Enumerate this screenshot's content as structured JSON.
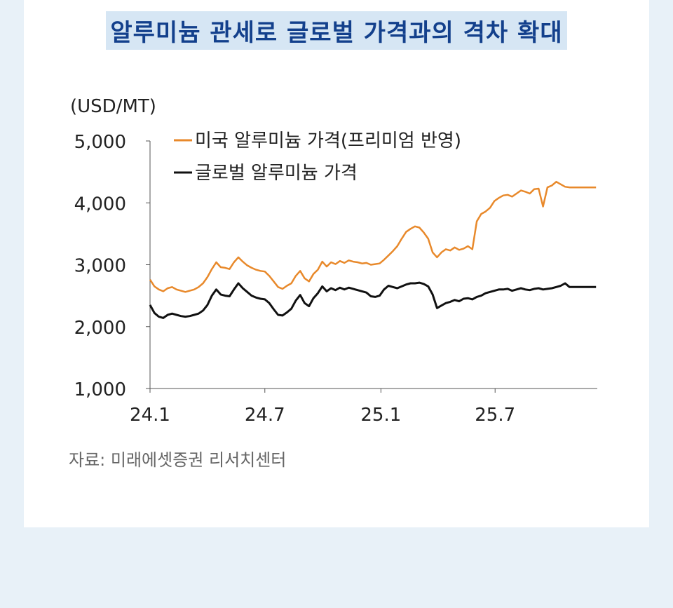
{
  "title": "알루미늄 관세로 글로벌 가격과의 격차 확대",
  "source": "자료: 미래에셋증권 리서치센터",
  "chart_data": {
    "type": "line",
    "title": "알루미늄 관세로 글로벌 가격과의 격차 확대",
    "unit_label": "(USD/MT)",
    "ylim": [
      1000,
      5000
    ],
    "yticks": [
      1000,
      2000,
      3000,
      4000,
      5000
    ],
    "ytick_labels": [
      "1,000",
      "2,000",
      "3,000",
      "4,000",
      "5,000"
    ],
    "xlim": [
      "2024-01-01",
      "2025-12-10"
    ],
    "xticks": [
      "2024-01-01",
      "2024-07-01",
      "2025-01-01",
      "2025-07-01"
    ],
    "xtick_labels": [
      "24.1",
      "24.7",
      "25.1",
      "25.7"
    ],
    "grid": false,
    "legend_position": "top-left",
    "series": [
      {
        "name": "미국 알루미늄 가격(프리미엄 반영)",
        "color": "#e8892b",
        "x": [
          "2024-01-01",
          "2024-01-08",
          "2024-01-15",
          "2024-01-22",
          "2024-01-29",
          "2024-02-05",
          "2024-02-12",
          "2024-02-19",
          "2024-02-26",
          "2024-03-04",
          "2024-03-11",
          "2024-03-18",
          "2024-03-25",
          "2024-04-01",
          "2024-04-08",
          "2024-04-15",
          "2024-04-22",
          "2024-04-29",
          "2024-05-06",
          "2024-05-13",
          "2024-05-20",
          "2024-05-27",
          "2024-06-03",
          "2024-06-10",
          "2024-06-17",
          "2024-06-24",
          "2024-07-01",
          "2024-07-08",
          "2024-07-15",
          "2024-07-22",
          "2024-07-29",
          "2024-08-05",
          "2024-08-12",
          "2024-08-19",
          "2024-08-26",
          "2024-09-02",
          "2024-09-09",
          "2024-09-16",
          "2024-09-23",
          "2024-09-30",
          "2024-10-07",
          "2024-10-14",
          "2024-10-21",
          "2024-10-28",
          "2024-11-04",
          "2024-11-11",
          "2024-11-18",
          "2024-11-25",
          "2024-12-02",
          "2024-12-09",
          "2024-12-16",
          "2024-12-23",
          "2024-12-30",
          "2025-01-06",
          "2025-01-13",
          "2025-01-20",
          "2025-01-27",
          "2025-02-03",
          "2025-02-10",
          "2025-02-17",
          "2025-02-24",
          "2025-03-03",
          "2025-03-10",
          "2025-03-17",
          "2025-03-24",
          "2025-03-31",
          "2025-04-07",
          "2025-04-14",
          "2025-04-21",
          "2025-04-28",
          "2025-05-05",
          "2025-05-12",
          "2025-05-19",
          "2025-05-26",
          "2025-06-02",
          "2025-06-09",
          "2025-06-16",
          "2025-06-23",
          "2025-06-30",
          "2025-07-07",
          "2025-07-14",
          "2025-07-21",
          "2025-07-28",
          "2025-08-04",
          "2025-08-11",
          "2025-08-18",
          "2025-08-25",
          "2025-09-01",
          "2025-09-08",
          "2025-09-15",
          "2025-09-22",
          "2025-09-29",
          "2025-10-06",
          "2025-10-13",
          "2025-10-20",
          "2025-10-27",
          "2025-11-03",
          "2025-11-10",
          "2025-11-17",
          "2025-11-24",
          "2025-12-01",
          "2025-12-08"
        ],
        "values": [
          2760,
          2650,
          2600,
          2570,
          2620,
          2640,
          2600,
          2580,
          2560,
          2580,
          2600,
          2640,
          2700,
          2800,
          2930,
          3040,
          2960,
          2950,
          2930,
          3040,
          3120,
          3050,
          2990,
          2950,
          2920,
          2900,
          2890,
          2820,
          2730,
          2640,
          2610,
          2660,
          2700,
          2820,
          2900,
          2780,
          2730,
          2850,
          2920,
          3050,
          2970,
          3040,
          3010,
          3060,
          3030,
          3070,
          3050,
          3040,
          3020,
          3030,
          3000,
          3010,
          3020,
          3080,
          3150,
          3220,
          3300,
          3420,
          3530,
          3580,
          3620,
          3600,
          3520,
          3420,
          3200,
          3120,
          3200,
          3250,
          3230,
          3280,
          3240,
          3260,
          3300,
          3250,
          3700,
          3820,
          3860,
          3920,
          4030,
          4080,
          4120,
          4130,
          4100,
          4150,
          4200,
          4180,
          4150,
          4220,
          4230,
          3940,
          4250,
          4280,
          4340,
          4300,
          4260,
          4250,
          4250,
          4250,
          4250,
          4250,
          4250,
          4250
        ]
      },
      {
        "name": "글로벌 알루미늄 가격",
        "color": "#111111",
        "x": [
          "2024-01-01",
          "2024-01-08",
          "2024-01-15",
          "2024-01-22",
          "2024-01-29",
          "2024-02-05",
          "2024-02-12",
          "2024-02-19",
          "2024-02-26",
          "2024-03-04",
          "2024-03-11",
          "2024-03-18",
          "2024-03-25",
          "2024-04-01",
          "2024-04-08",
          "2024-04-15",
          "2024-04-22",
          "2024-04-29",
          "2024-05-06",
          "2024-05-13",
          "2024-05-20",
          "2024-05-27",
          "2024-06-03",
          "2024-06-10",
          "2024-06-17",
          "2024-06-24",
          "2024-07-01",
          "2024-07-08",
          "2024-07-15",
          "2024-07-22",
          "2024-07-29",
          "2024-08-05",
          "2024-08-12",
          "2024-08-19",
          "2024-08-26",
          "2024-09-02",
          "2024-09-09",
          "2024-09-16",
          "2024-09-23",
          "2024-09-30",
          "2024-10-07",
          "2024-10-14",
          "2024-10-21",
          "2024-10-28",
          "2024-11-04",
          "2024-11-11",
          "2024-11-18",
          "2024-11-25",
          "2024-12-02",
          "2024-12-09",
          "2024-12-16",
          "2024-12-23",
          "2024-12-30",
          "2025-01-06",
          "2025-01-13",
          "2025-01-20",
          "2025-01-27",
          "2025-02-03",
          "2025-02-10",
          "2025-02-17",
          "2025-02-24",
          "2025-03-03",
          "2025-03-10",
          "2025-03-17",
          "2025-03-24",
          "2025-03-31",
          "2025-04-07",
          "2025-04-14",
          "2025-04-21",
          "2025-04-28",
          "2025-05-05",
          "2025-05-12",
          "2025-05-19",
          "2025-05-26",
          "2025-06-02",
          "2025-06-09",
          "2025-06-16",
          "2025-06-23",
          "2025-06-30",
          "2025-07-07",
          "2025-07-14",
          "2025-07-21",
          "2025-07-28",
          "2025-08-04",
          "2025-08-11",
          "2025-08-18",
          "2025-08-25",
          "2025-09-01",
          "2025-09-08",
          "2025-09-15",
          "2025-09-22",
          "2025-09-29",
          "2025-10-06",
          "2025-10-13",
          "2025-10-20",
          "2025-10-27",
          "2025-11-03",
          "2025-11-10",
          "2025-11-17",
          "2025-11-24",
          "2025-12-01",
          "2025-12-08"
        ],
        "values": [
          2350,
          2220,
          2160,
          2140,
          2190,
          2210,
          2190,
          2170,
          2160,
          2170,
          2190,
          2210,
          2260,
          2350,
          2500,
          2600,
          2520,
          2500,
          2490,
          2600,
          2700,
          2620,
          2560,
          2500,
          2470,
          2450,
          2440,
          2380,
          2280,
          2190,
          2180,
          2230,
          2290,
          2420,
          2510,
          2380,
          2330,
          2460,
          2540,
          2650,
          2570,
          2620,
          2590,
          2630,
          2600,
          2630,
          2610,
          2590,
          2570,
          2550,
          2490,
          2480,
          2500,
          2600,
          2660,
          2640,
          2620,
          2650,
          2680,
          2700,
          2700,
          2710,
          2690,
          2650,
          2520,
          2300,
          2340,
          2380,
          2400,
          2430,
          2410,
          2450,
          2460,
          2440,
          2480,
          2500,
          2540,
          2560,
          2580,
          2600,
          2600,
          2610,
          2580,
          2600,
          2620,
          2600,
          2590,
          2610,
          2620,
          2600,
          2610,
          2620,
          2640,
          2660,
          2700,
          2640,
          2640,
          2640,
          2640,
          2640,
          2640,
          2640
        ]
      }
    ]
  }
}
